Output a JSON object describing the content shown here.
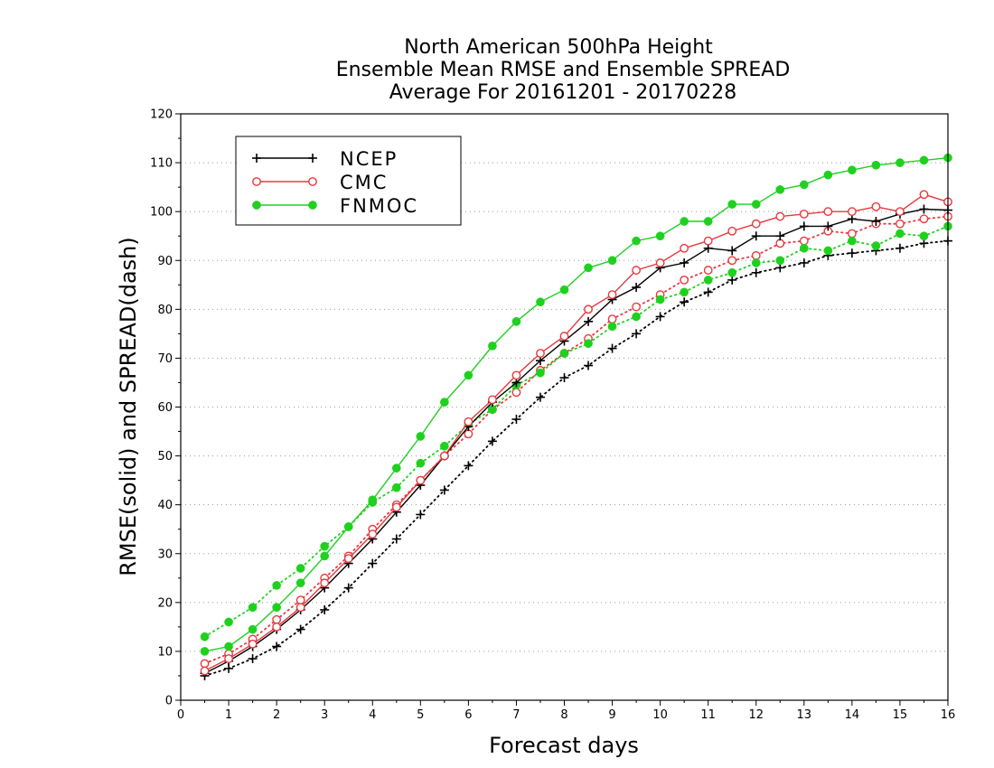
{
  "chart_data": {
    "type": "line",
    "title": [
      "North American 500hPa Height",
      "Ensemble Mean RMSE and Ensemble SPREAD",
      "Average For 20161201 - 20170228"
    ],
    "xlabel": "Forecast days",
    "ylabel": "RMSE(solid) and SPREAD(dash)",
    "xlim": [
      0,
      16
    ],
    "ylim": [
      0,
      120
    ],
    "xticks": [
      0,
      1,
      2,
      3,
      4,
      5,
      6,
      7,
      8,
      9,
      10,
      11,
      12,
      13,
      14,
      15,
      16
    ],
    "yticks": [
      0,
      10,
      20,
      30,
      40,
      50,
      60,
      70,
      80,
      90,
      100,
      110,
      120
    ],
    "grid": "horizontal dotted",
    "legend_position": "top-left",
    "x": [
      0.5,
      1,
      1.5,
      2,
      2.5,
      3,
      3.5,
      4,
      4.5,
      5,
      5.5,
      6,
      6.5,
      7,
      7.5,
      8,
      8.5,
      9,
      9.5,
      10,
      10.5,
      11,
      11.5,
      12,
      12.5,
      13,
      13.5,
      14,
      14.5,
      15,
      15.5,
      16
    ],
    "series": [
      {
        "name": "NCEP",
        "kind": "rmse",
        "line": "solid",
        "marker": "plus",
        "color": "#000000",
        "values": [
          5.5,
          8.0,
          11.0,
          14.5,
          18.5,
          23.0,
          28.0,
          33.0,
          38.5,
          44.0,
          50.0,
          56.0,
          61.0,
          65.0,
          69.5,
          73.5,
          77.5,
          82.0,
          84.5,
          88.5,
          89.5,
          92.5,
          92.0,
          95.0,
          95.0,
          97.0,
          97.0,
          98.5,
          98.0,
          99.5,
          100.5,
          100.3
        ]
      },
      {
        "name": "NCEP",
        "kind": "spread",
        "line": "dotted",
        "marker": "plus",
        "color": "#000000",
        "values": [
          5.0,
          6.5,
          8.5,
          11.0,
          14.5,
          18.5,
          23.0,
          28.0,
          33.0,
          38.0,
          43.0,
          48.0,
          53.0,
          57.5,
          62.0,
          66.0,
          68.5,
          72.0,
          75.0,
          78.5,
          81.5,
          83.5,
          86.0,
          87.5,
          88.5,
          89.5,
          91.0,
          91.5,
          92.0,
          92.5,
          93.5,
          94.0
        ]
      },
      {
        "name": "CMC",
        "kind": "rmse",
        "line": "solid",
        "marker": "open-circle",
        "color": "#e8383d",
        "values": [
          6.0,
          8.5,
          11.5,
          15.0,
          19.0,
          24.0,
          29.0,
          34.0,
          39.5,
          45.0,
          50.0,
          57.0,
          61.5,
          66.5,
          71.0,
          74.5,
          80.0,
          83.0,
          88.0,
          89.5,
          92.5,
          94.0,
          96.0,
          97.5,
          99.0,
          99.5,
          100.0,
          100.0,
          101.0,
          100.0,
          103.5,
          102.0
        ]
      },
      {
        "name": "CMC",
        "kind": "spread",
        "line": "dotted",
        "marker": "open-circle",
        "color": "#e8383d",
        "values": [
          7.5,
          9.5,
          12.5,
          16.5,
          20.5,
          25.0,
          29.5,
          35.0,
          40.0,
          45.0,
          50.0,
          54.5,
          59.5,
          63.0,
          67.5,
          71.0,
          74.0,
          78.0,
          80.5,
          83.0,
          86.0,
          88.0,
          90.0,
          91.0,
          93.5,
          94.0,
          96.0,
          95.5,
          97.5,
          97.5,
          98.5,
          99.0
        ]
      },
      {
        "name": "FNMOC",
        "kind": "rmse",
        "line": "solid",
        "marker": "filled-circle",
        "color": "#1fd11f",
        "values": [
          10.0,
          11.0,
          14.5,
          19.0,
          24.0,
          29.5,
          35.5,
          41.0,
          47.5,
          54.0,
          61.0,
          66.5,
          72.5,
          77.5,
          81.5,
          84.0,
          88.5,
          90.0,
          94.0,
          95.0,
          98.0,
          98.0,
          101.5,
          101.5,
          104.5,
          105.5,
          107.5,
          108.5,
          109.5,
          110.0,
          110.5,
          111.0
        ]
      },
      {
        "name": "FNMOC",
        "kind": "spread",
        "line": "dotted",
        "marker": "filled-circle",
        "color": "#1fd11f",
        "values": [
          13.0,
          16.0,
          19.0,
          23.5,
          27.0,
          31.5,
          35.5,
          40.5,
          43.5,
          48.5,
          52.0,
          56.5,
          59.5,
          64.5,
          67.0,
          71.0,
          73.0,
          76.5,
          78.5,
          82.0,
          83.5,
          86.0,
          87.5,
          89.5,
          90.0,
          92.5,
          92.0,
          94.0,
          93.0,
          95.5,
          95.0,
          97.0
        ]
      }
    ]
  }
}
